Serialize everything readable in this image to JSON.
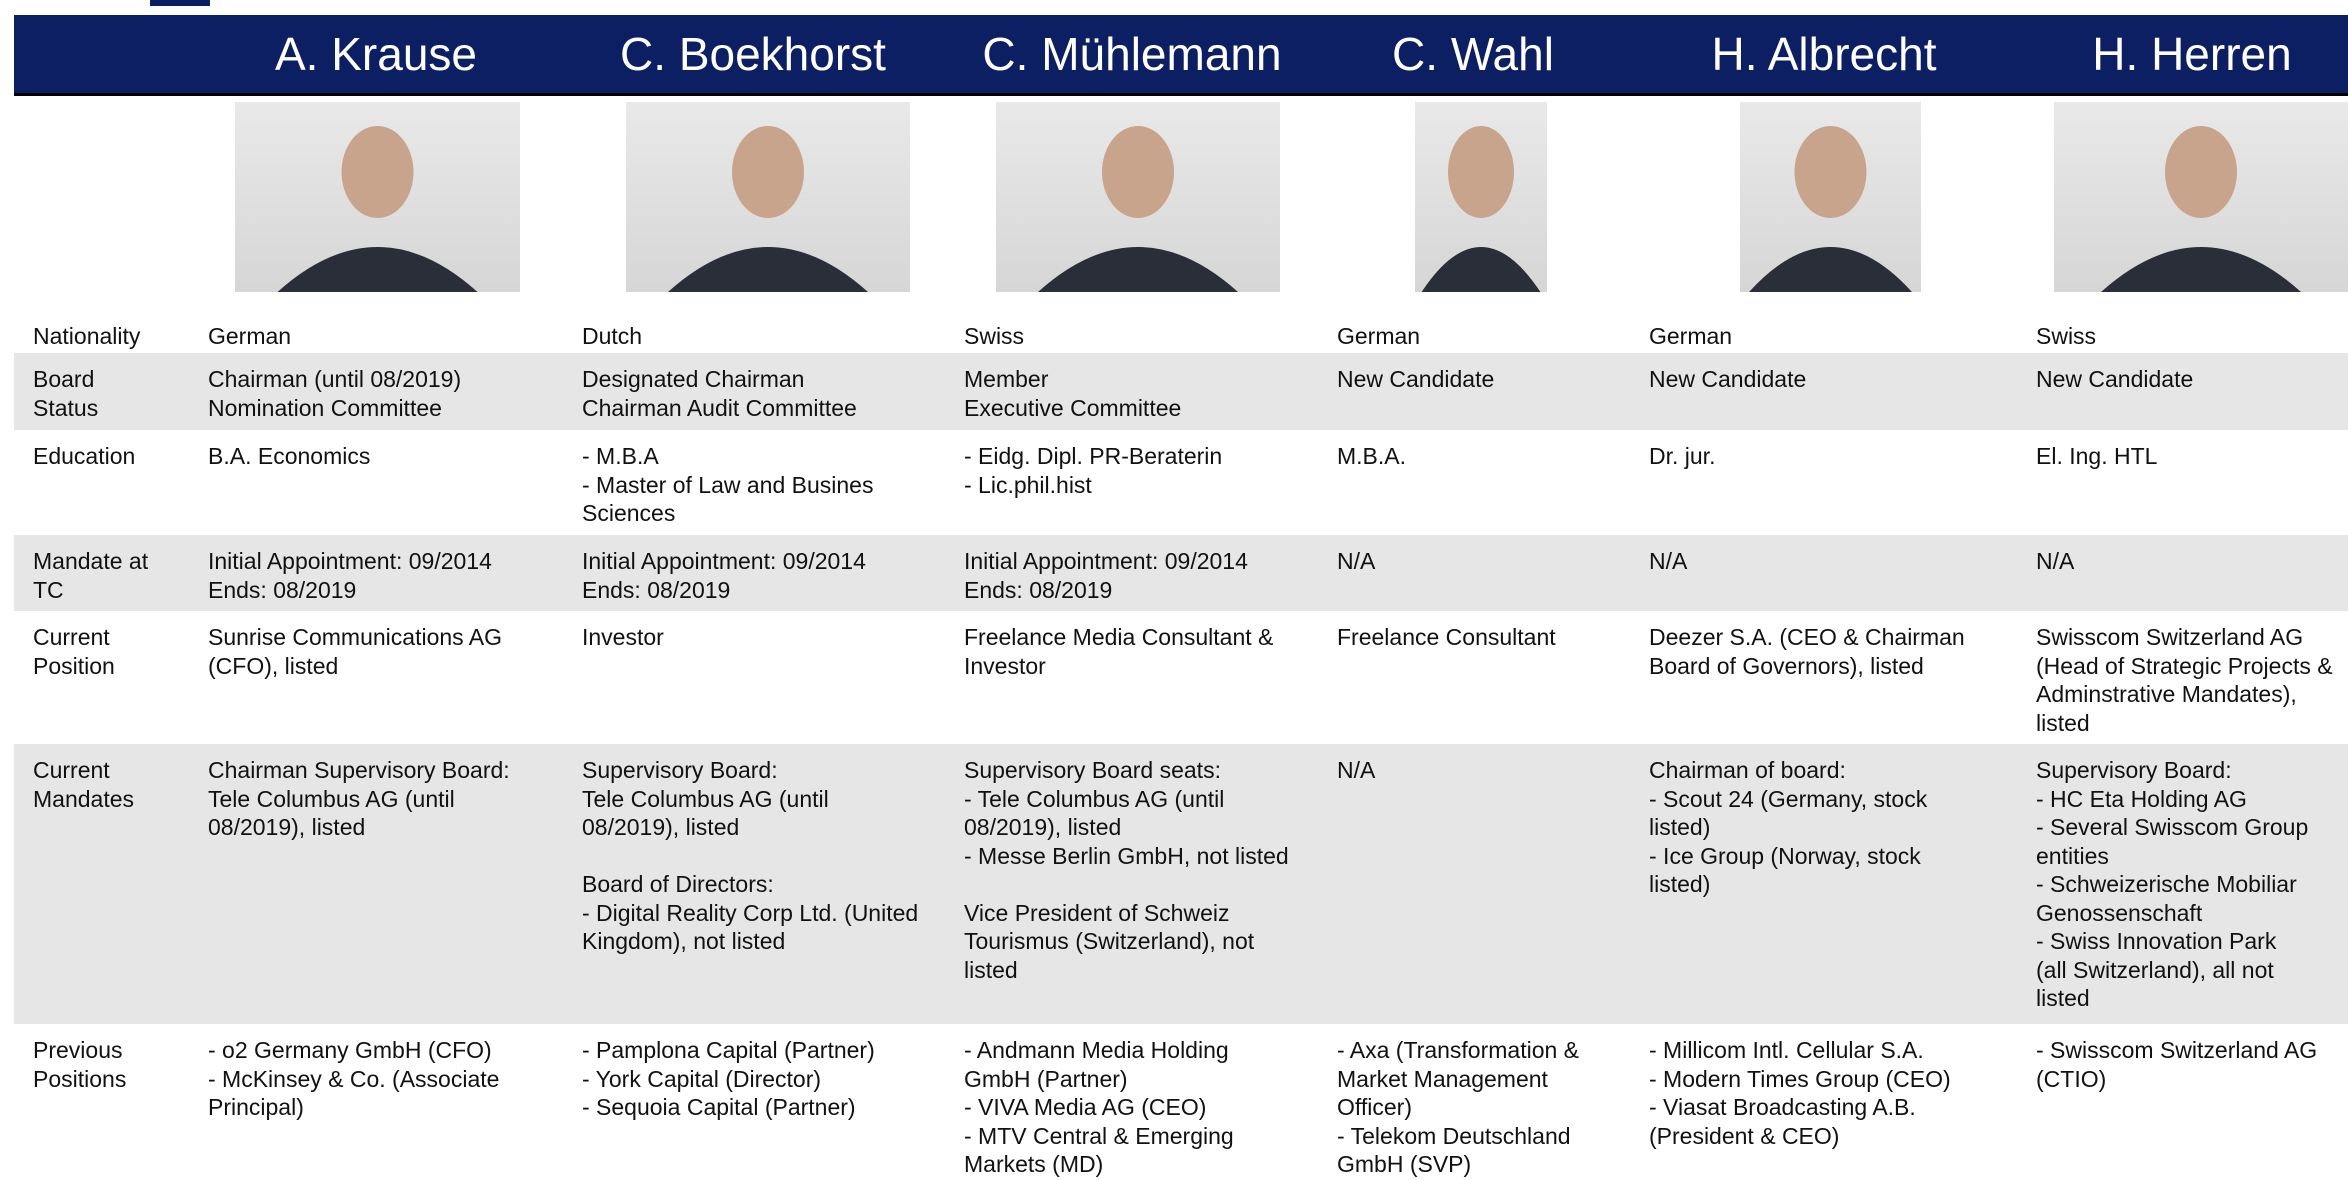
{
  "header": {
    "names": [
      "A. Krause",
      "C. Boekhorst",
      "C. Mühlemann",
      "C. Wahl",
      "H. Albrecht",
      "H. Herren"
    ]
  },
  "table": {
    "rows": [
      {
        "label": [
          "Nationality"
        ],
        "cells": [
          [
            "German"
          ],
          [
            "Dutch"
          ],
          [
            "Swiss"
          ],
          [
            "German"
          ],
          [
            "German"
          ],
          [
            "Swiss"
          ]
        ]
      },
      {
        "label": [
          "Board",
          "Status"
        ],
        "cells": [
          [
            "Chairman (until 08/2019)",
            "Nomination Committee"
          ],
          [
            "Designated Chairman",
            "Chairman Audit Committee"
          ],
          [
            "Member",
            "Executive Committee"
          ],
          [
            "New Candidate"
          ],
          [
            "New Candidate"
          ],
          [
            "New Candidate"
          ]
        ]
      },
      {
        "label": [
          "Education"
        ],
        "cells": [
          [
            "B.A. Economics"
          ],
          [
            "- M.B.A",
            "- Master of Law and Busines",
            "Sciences"
          ],
          [
            "- Eidg. Dipl. PR-Beraterin",
            "- Lic.phil.hist"
          ],
          [
            "M.B.A."
          ],
          [
            "Dr. jur."
          ],
          [
            "El. Ing. HTL"
          ]
        ]
      },
      {
        "label": [
          "Mandate at",
          "TC"
        ],
        "cells": [
          [
            "Initial Appointment: 09/2014",
            "Ends: 08/2019"
          ],
          [
            "Initial Appointment: 09/2014",
            "Ends: 08/2019"
          ],
          [
            "Initial Appointment: 09/2014",
            "Ends: 08/2019"
          ],
          [
            "N/A"
          ],
          [
            "N/A"
          ],
          [
            "N/A"
          ]
        ]
      },
      {
        "label": [
          "Current",
          "Position"
        ],
        "cells": [
          [
            "Sunrise Communications AG",
            "(CFO), listed"
          ],
          [
            "Investor"
          ],
          [
            "Freelance Media Consultant &",
            "Investor"
          ],
          [
            "Freelance Consultant"
          ],
          [
            "Deezer S.A. (CEO & Chairman",
            "Board of Governors), listed"
          ],
          [
            "Swisscom Switzerland AG",
            "(Head of Strategic Projects &",
            "Adminstrative Mandates),",
            "listed"
          ]
        ]
      },
      {
        "label": [
          "Current",
          "Mandates"
        ],
        "cells": [
          [
            "Chairman Supervisory Board:",
            "Tele Columbus AG (until",
            "08/2019), listed"
          ],
          [
            "Supervisory Board:",
            "Tele Columbus AG (until",
            "08/2019), listed",
            "",
            "Board of Directors:",
            "- Digital Reality Corp Ltd. (United",
            "Kingdom), not listed"
          ],
          [
            "Supervisory Board seats:",
            "- Tele Columbus AG (until",
            "08/2019), listed",
            "- Messe Berlin GmbH, not listed",
            "",
            "Vice President of Schweiz",
            "Tourismus (Switzerland), not",
            "listed"
          ],
          [
            "N/A"
          ],
          [
            "Chairman of board:",
            "- Scout 24 (Germany, stock",
            "listed)",
            "- Ice Group (Norway, stock",
            "listed)"
          ],
          [
            "Supervisory Board:",
            "- HC Eta Holding AG",
            "- Several Swisscom Group",
            "entities",
            "- Schweizerische Mobiliar",
            "Genossenschaft",
            "- Swiss Innovation Park",
            "(all Switzerland),  all not",
            "listed"
          ]
        ]
      },
      {
        "label": [
          "Previous",
          "Positions"
        ],
        "cells": [
          [
            "- o2 Germany GmbH (CFO)",
            "- McKinsey & Co. (Associate",
            "Principal)"
          ],
          [
            "- Pamplona Capital (Partner)",
            "- York Capital (Director)",
            "- Sequoia Capital (Partner)"
          ],
          [
            "- Andmann Media Holding",
            "GmbH (Partner)",
            "- VIVA Media AG (CEO)",
            "- MTV Central & Emerging",
            "Markets (MD)"
          ],
          [
            "- Axa (Transformation &",
            "Market Management",
            "Officer)",
            "- Telekom Deutschland",
            "GmbH (SVP)"
          ],
          [
            "- Millicom Intl. Cellular S.A.",
            "- Modern Times Group (CEO)",
            "- Viasat Broadcasting A.B.",
            "(President & CEO)"
          ],
          [
            "- Swisscom Switzerland AG",
            "(CTIO)"
          ]
        ]
      }
    ]
  }
}
